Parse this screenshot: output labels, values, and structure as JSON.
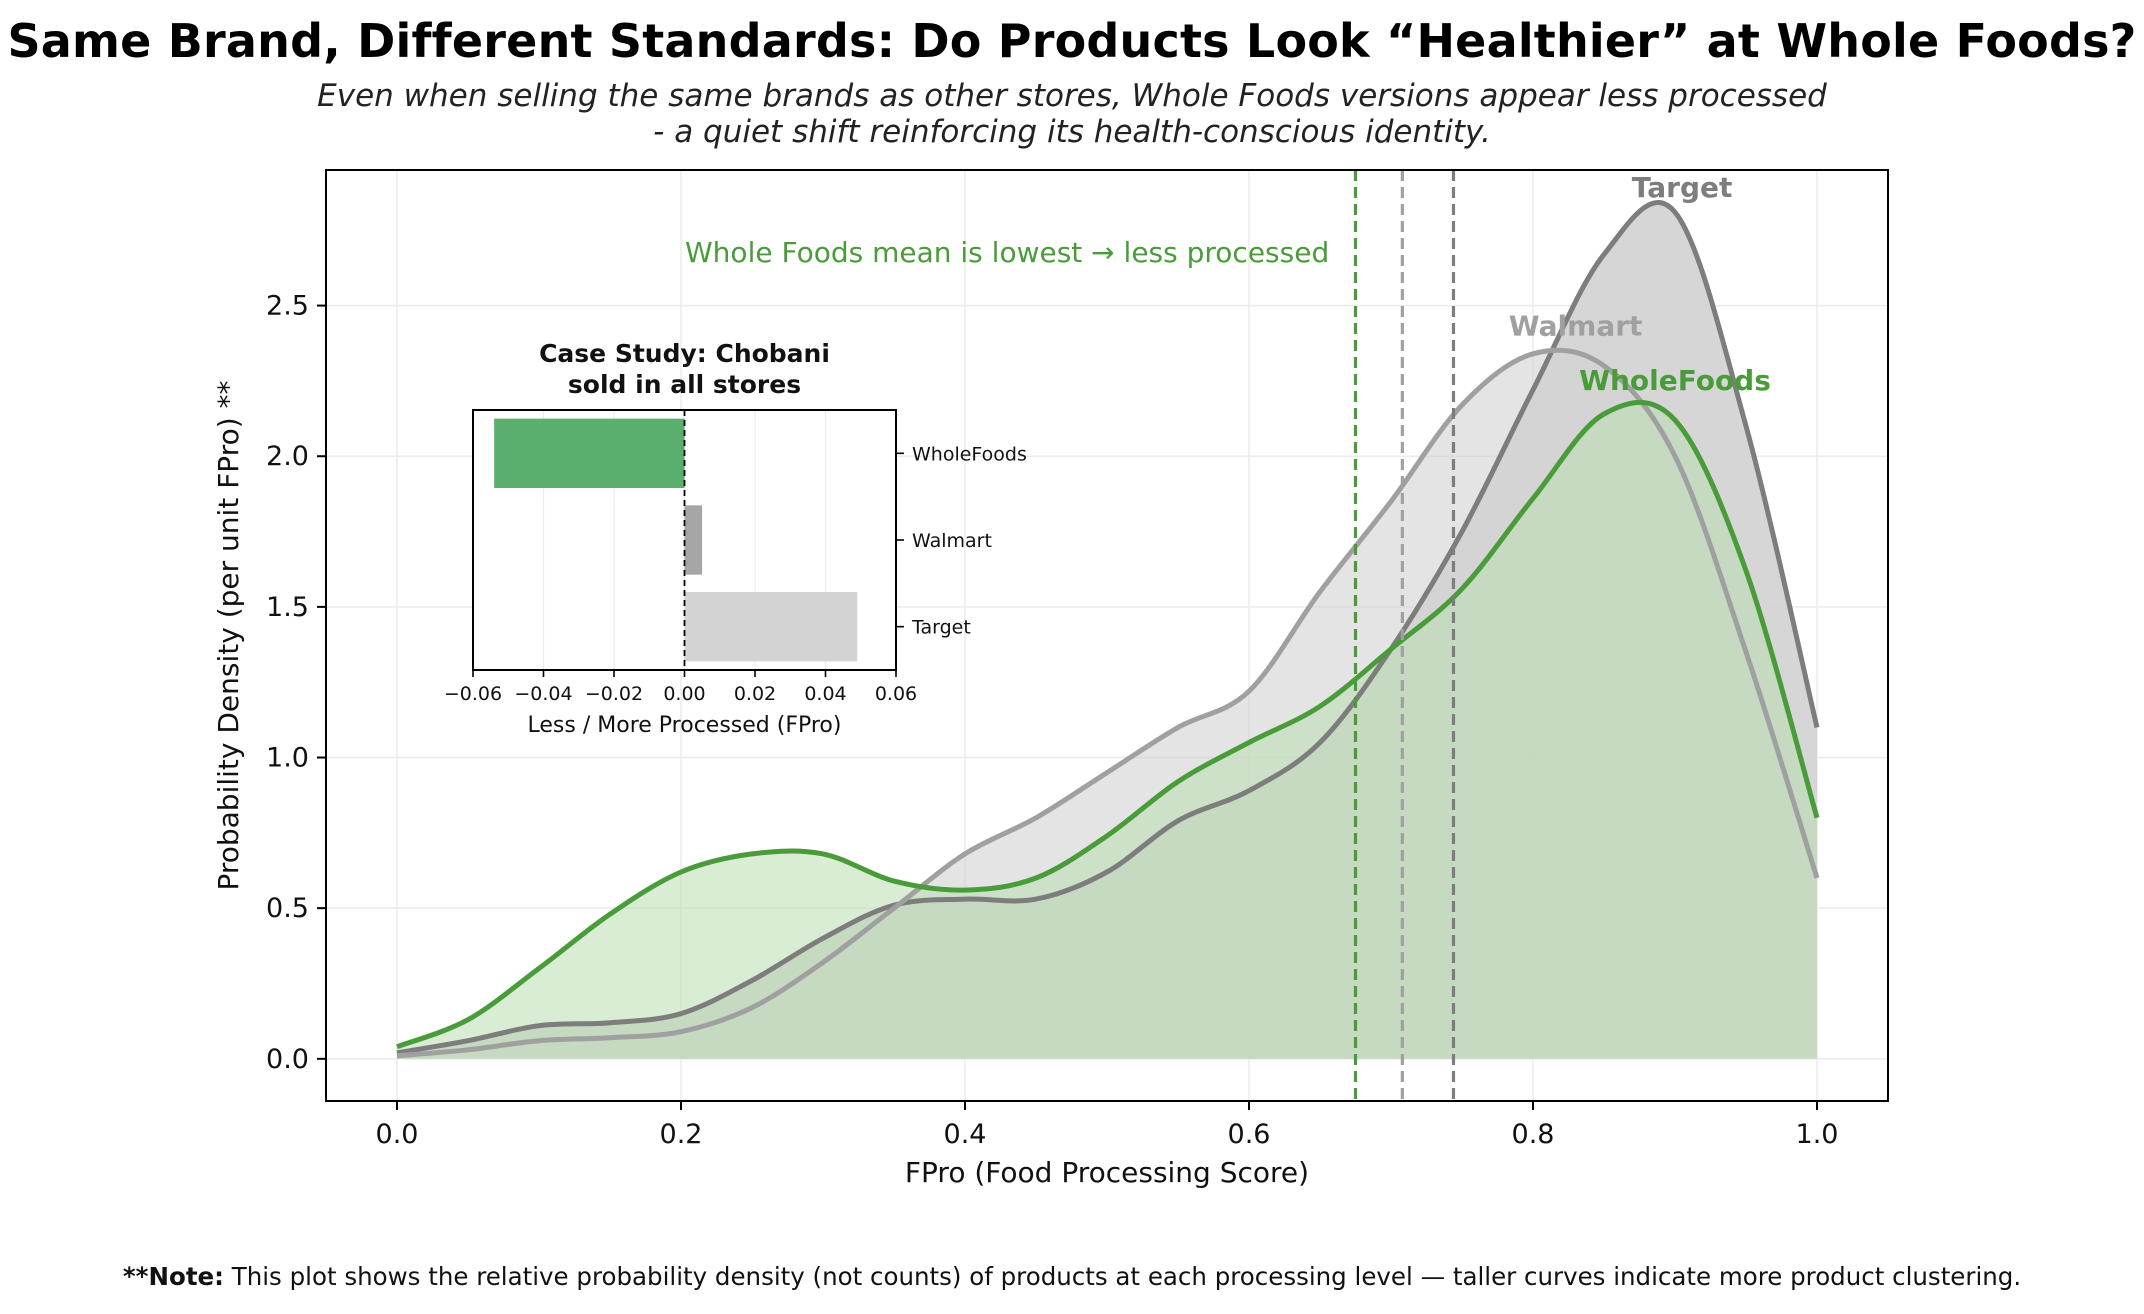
{
  "title": "Same Brand, Different Standards: Do Products Look “Healthier” at Whole Foods?",
  "subtitle_line1": "Even when selling the same brands as other stores, Whole Foods versions appear less processed",
  "subtitle_line2": "- a quiet shift reinforcing its health-conscious identity.",
  "annotation": "Whole Foods mean is lowest → less processed",
  "note_prefix": "**Note:",
  "note_text": " This plot shows the relative probability density (not counts) of products at each processing level — taller curves indicate more product clustering.",
  "colors": {
    "WholeFoods": "#4a9c3a",
    "WholeFoods_fill": "#b9dcb1",
    "Walmart": "#a0a0a0",
    "Target": "#7d7d7d",
    "gray_fill": "#d2d2d2",
    "inset_WholeFoods": "#5aae6e",
    "inset_Walmart": "#a6a6a6",
    "inset_Target": "#d3d3d3"
  },
  "chart_data": [
    {
      "type": "area",
      "title": "",
      "xlabel": "FPro (Food Processing Score)",
      "ylabel": "Probability Density (per unit FPro) **",
      "xlim": [
        -0.05,
        1.05
      ],
      "ylim": [
        -0.14,
        2.95
      ],
      "xticks": [
        0.0,
        0.2,
        0.4,
        0.6,
        0.8,
        1.0
      ],
      "yticks": [
        0.0,
        0.5,
        1.0,
        1.5,
        2.0,
        2.5
      ],
      "grid": true,
      "series": [
        {
          "name": "Target",
          "x": [
            0.0,
            0.05,
            0.1,
            0.15,
            0.2,
            0.25,
            0.3,
            0.35,
            0.4,
            0.45,
            0.5,
            0.55,
            0.6,
            0.65,
            0.7,
            0.75,
            0.8,
            0.85,
            0.9,
            0.95,
            1.0
          ],
          "y": [
            0.02,
            0.06,
            0.11,
            0.12,
            0.15,
            0.26,
            0.4,
            0.51,
            0.53,
            0.53,
            0.62,
            0.79,
            0.89,
            1.05,
            1.36,
            1.75,
            2.22,
            2.67,
            2.81,
            2.1,
            1.1
          ]
        },
        {
          "name": "Walmart",
          "x": [
            0.0,
            0.05,
            0.1,
            0.15,
            0.2,
            0.25,
            0.3,
            0.35,
            0.4,
            0.45,
            0.5,
            0.55,
            0.6,
            0.65,
            0.7,
            0.75,
            0.8,
            0.85,
            0.9,
            0.95,
            1.0
          ],
          "y": [
            0.01,
            0.03,
            0.06,
            0.07,
            0.09,
            0.17,
            0.32,
            0.5,
            0.68,
            0.8,
            0.95,
            1.1,
            1.22,
            1.55,
            1.85,
            2.17,
            2.34,
            2.3,
            2.0,
            1.35,
            0.6
          ]
        },
        {
          "name": "WholeFoods",
          "x": [
            0.0,
            0.05,
            0.1,
            0.15,
            0.2,
            0.25,
            0.3,
            0.35,
            0.4,
            0.45,
            0.5,
            0.55,
            0.6,
            0.65,
            0.7,
            0.75,
            0.8,
            0.85,
            0.9,
            0.95,
            1.0
          ],
          "y": [
            0.04,
            0.13,
            0.3,
            0.48,
            0.62,
            0.68,
            0.68,
            0.59,
            0.56,
            0.6,
            0.74,
            0.92,
            1.05,
            1.17,
            1.36,
            1.56,
            1.86,
            2.14,
            2.12,
            1.62,
            0.8
          ]
        }
      ],
      "means": [
        {
          "name": "WholeFoods",
          "x": 0.675
        },
        {
          "name": "Walmart",
          "x": 0.708
        },
        {
          "name": "Target",
          "x": 0.744
        }
      ],
      "curve_labels": [
        {
          "name": "Target",
          "x": 0.905,
          "y": 2.86
        },
        {
          "name": "Walmart",
          "x": 0.83,
          "y": 2.4
        },
        {
          "name": "WholeFoods",
          "x": 0.9,
          "y": 2.22
        }
      ]
    },
    {
      "type": "bar",
      "orientation": "horizontal",
      "title_line1": "Case Study: Chobani",
      "title_line2": "sold in all stores",
      "xlabel": "Less / More Processed (FPro)",
      "categories": [
        "WholeFoods",
        "Walmart",
        "Target"
      ],
      "values": [
        -0.054,
        0.005,
        0.049
      ],
      "xlim": [
        -0.06,
        0.06
      ],
      "xticks": [
        -0.06,
        -0.04,
        -0.02,
        0.0,
        0.02,
        0.04,
        0.06
      ],
      "xtick_labels": [
        "−0.06",
        "−0.04",
        "−0.02",
        "0.00",
        "0.02",
        "0.04",
        "0.06"
      ]
    }
  ]
}
